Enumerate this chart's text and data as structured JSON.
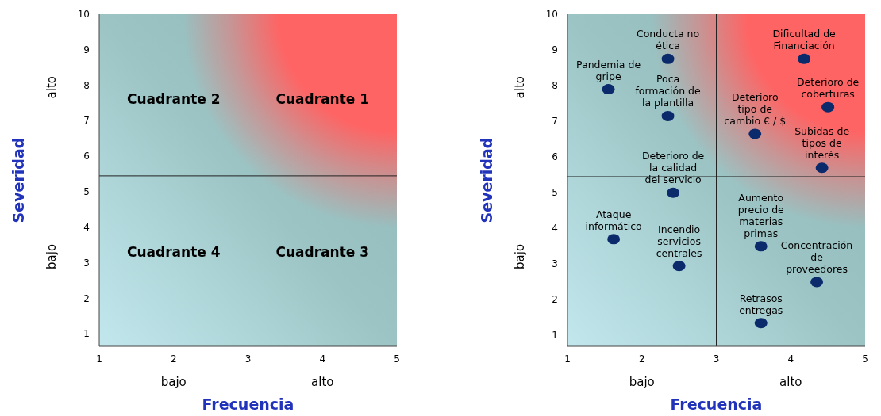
{
  "chart_data": [
    {
      "type": "scatter",
      "xlabel": "Frecuencia",
      "ylabel": "Severidad",
      "xlim": [
        1,
        5
      ],
      "ylim": [
        0.65,
        10
      ],
      "xticks": [
        1,
        2,
        3,
        4,
        5
      ],
      "yticks": [
        1,
        2,
        3,
        4,
        5,
        6,
        7,
        8,
        9,
        10
      ],
      "ref_lines": [
        {
          "axis": "x",
          "value": 3,
          "color": "#222222"
        },
        {
          "axis": "y",
          "value": 5.45,
          "color": "#222222"
        }
      ],
      "annotations": [
        "bajo",
        "alto",
        "alto",
        "bajo",
        "Cuadrante 2",
        "Cuadrante 1",
        "Cuadrante 4",
        "Cuadrante 3"
      ]
    },
    {
      "type": "scatter",
      "xlabel": "Frecuencia",
      "ylabel": "Severidad",
      "xlim": [
        1,
        5
      ],
      "ylim": [
        0.7,
        10
      ],
      "xticks": [
        1,
        2,
        3,
        4,
        5
      ],
      "yticks": [
        1,
        2,
        3,
        4,
        5,
        6,
        7,
        8,
        9,
        10
      ],
      "grid": false,
      "marker": "circle",
      "ref_lines": [
        {
          "axis": "x",
          "value": 3,
          "color": "#222222"
        },
        {
          "axis": "y",
          "value": 5.45,
          "color": "#222222"
        }
      ],
      "series": [
        {
          "color": "#0a2a6b",
          "x": [
            1.55,
            2.35,
            2.35,
            2.42,
            1.62,
            2.5,
            4.18,
            4.5,
            3.52,
            4.42,
            3.6,
            4.35,
            3.6
          ],
          "values": [
            7.9,
            8.75,
            7.15,
            5.0,
            3.7,
            2.95,
            8.75,
            7.4,
            6.65,
            5.7,
            3.5,
            2.5,
            1.35
          ]
        }
      ],
      "annotations": [
        "bajo",
        "alto",
        "alto",
        "bajo",
        {
          "text": "Pandemia de gripe",
          "x": 1.55,
          "y": 7.9
        },
        {
          "text": "Conducta no ética",
          "x": 2.35,
          "y": 8.75
        },
        {
          "text": "Poca formación de la plantilla",
          "x": 2.35,
          "y": 7.15
        },
        {
          "text": "Deterioro de la calidad del servicio",
          "x": 2.42,
          "y": 5.0
        },
        {
          "text": "Ataque informático",
          "x": 1.62,
          "y": 3.7
        },
        {
          "text": "Incendio servicios centrales",
          "x": 2.5,
          "y": 2.95
        },
        {
          "text": "Dificultad de Financiación",
          "x": 4.18,
          "y": 8.75
        },
        {
          "text": "Deterioro de coberturas",
          "x": 4.5,
          "y": 7.4
        },
        {
          "text": "Deterioro tipo de cambio € / $",
          "x": 3.52,
          "y": 6.65
        },
        {
          "text": "Subidas de tipos de interés",
          "x": 4.42,
          "y": 5.7
        },
        {
          "text": "Aumento precio de materias primas",
          "x": 3.6,
          "y": 3.5
        },
        {
          "text": "Concentración de proveedores",
          "x": 4.35,
          "y": 2.5
        },
        {
          "text": "Retrasos entregas",
          "x": 3.6,
          "y": 1.35
        }
      ]
    }
  ]
}
